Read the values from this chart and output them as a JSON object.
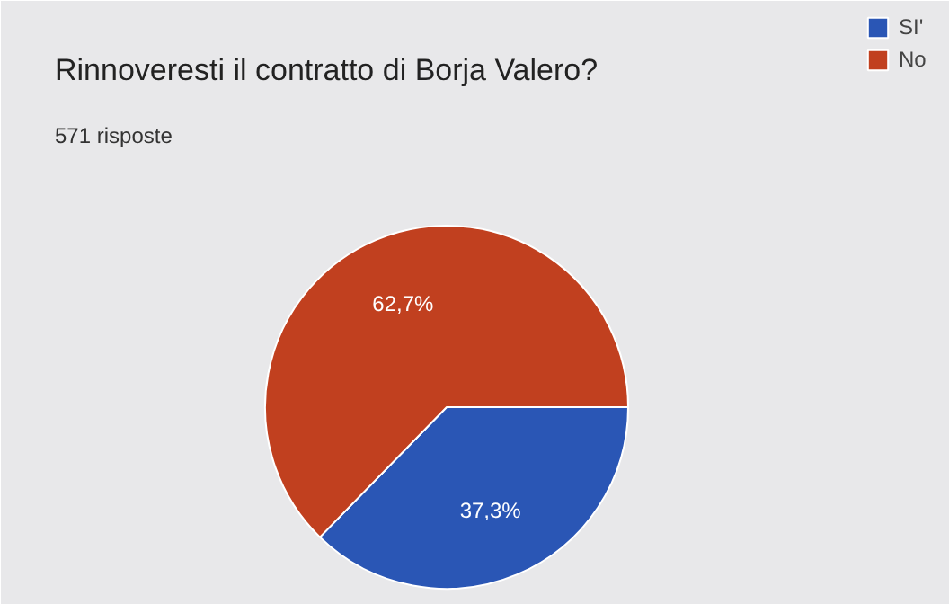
{
  "chart_data": {
    "type": "pie",
    "title": "Rinnoveresti il contratto di Borja Valero?",
    "subtitle": "571 risposte",
    "categories": [
      "SI'",
      "No"
    ],
    "values": [
      37.3,
      62.7
    ],
    "colors": [
      "#2a56b5",
      "#c1401f"
    ],
    "value_labels": [
      "37,3%",
      "62,7%"
    ],
    "legend": "top right"
  }
}
